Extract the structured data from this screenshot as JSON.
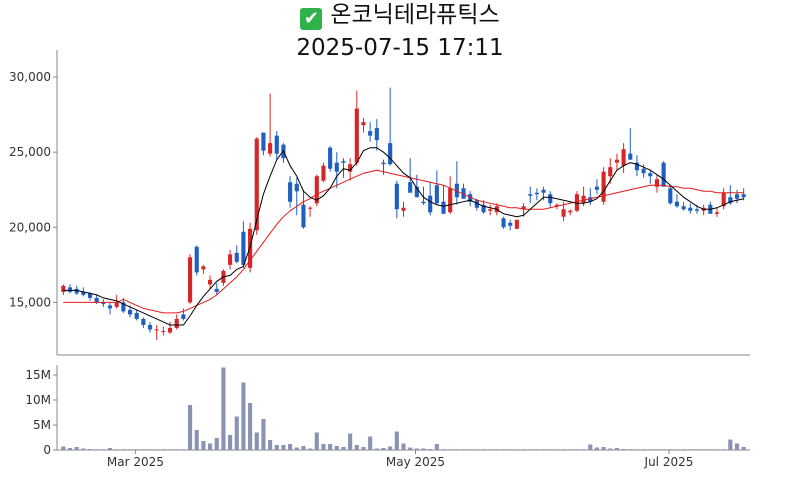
{
  "header": {
    "check_icon": "check-mark-button-icon",
    "stock_name": "온코닉테라퓨틱스",
    "timestamp": "2025-07-15 17:11"
  },
  "colors": {
    "up": "#d62728",
    "down": "#1f5fbf",
    "ma_short": "#000000",
    "ma_long": "#e41a1c",
    "volume": "#8a93b3",
    "axis": "#888888"
  },
  "chart_data": [
    {
      "type": "candlestick",
      "title": "온코닉테라퓨틱스",
      "subtitle": "2025-07-15 17:11",
      "xlabel": "",
      "ylabel": "",
      "x_ticks": [
        "Mar 2025",
        "May 2025",
        "Jul 2025"
      ],
      "y_ticks": [
        "15,000",
        "20,000",
        "25,000",
        "30,000"
      ],
      "ylim": [
        11500,
        31800
      ],
      "grid": false,
      "legend": "none",
      "x": [
        "2025-02-13",
        "2025-02-14",
        "2025-02-17",
        "2025-02-18",
        "2025-02-19",
        "2025-02-20",
        "2025-02-21",
        "2025-02-24",
        "2025-02-25",
        "2025-02-26",
        "2025-02-27",
        "2025-02-28",
        "2025-03-04",
        "2025-03-05",
        "2025-03-06",
        "2025-03-07",
        "2025-03-10",
        "2025-03-11",
        "2025-03-12",
        "2025-03-13",
        "2025-03-14",
        "2025-03-17",
        "2025-03-18",
        "2025-03-19",
        "2025-03-20",
        "2025-03-21",
        "2025-03-24",
        "2025-03-25",
        "2025-03-26",
        "2025-03-27",
        "2025-03-28",
        "2025-03-31",
        "2025-04-01",
        "2025-04-02",
        "2025-04-03",
        "2025-04-04",
        "2025-04-07",
        "2025-04-08",
        "2025-04-09",
        "2025-04-10",
        "2025-04-11",
        "2025-04-14",
        "2025-04-15",
        "2025-04-16",
        "2025-04-17",
        "2025-04-18",
        "2025-04-21",
        "2025-04-22",
        "2025-04-23",
        "2025-04-24",
        "2025-04-25",
        "2025-04-28",
        "2025-04-29",
        "2025-04-30",
        "2025-05-02",
        "2025-05-07",
        "2025-05-08",
        "2025-05-09",
        "2025-05-12",
        "2025-05-13",
        "2025-05-14",
        "2025-05-15",
        "2025-05-16",
        "2025-05-19",
        "2025-05-20",
        "2025-05-21",
        "2025-05-22",
        "2025-05-23",
        "2025-05-26",
        "2025-05-27",
        "2025-05-28",
        "2025-05-29",
        "2025-05-30",
        "2025-06-02",
        "2025-06-04",
        "2025-06-05",
        "2025-06-09",
        "2025-06-10",
        "2025-06-11",
        "2025-06-12",
        "2025-06-13",
        "2025-06-16",
        "2025-06-17",
        "2025-06-18",
        "2025-06-19",
        "2025-06-20",
        "2025-06-23",
        "2025-06-24",
        "2025-06-25",
        "2025-06-26",
        "2025-06-27",
        "2025-06-30",
        "2025-07-01",
        "2025-07-02",
        "2025-07-03",
        "2025-07-04",
        "2025-07-07",
        "2025-07-08",
        "2025-07-09",
        "2025-07-10",
        "2025-07-11",
        "2025-07-14",
        "2025-07-15"
      ],
      "ohlc": [
        [
          15700,
          16200,
          15500,
          16100
        ],
        [
          16000,
          16200,
          15600,
          15700
        ],
        [
          15900,
          16100,
          15500,
          15600
        ],
        [
          15700,
          16000,
          15400,
          15500
        ],
        [
          15600,
          15700,
          15100,
          15300
        ],
        [
          15300,
          15500,
          14900,
          15000
        ],
        [
          15000,
          15200,
          14700,
          14900
        ],
        [
          14800,
          15000,
          14200,
          14600
        ],
        [
          14700,
          15500,
          14600,
          15000
        ],
        [
          15000,
          15300,
          14300,
          14400
        ],
        [
          14500,
          14800,
          14000,
          14200
        ],
        [
          14300,
          14500,
          13800,
          13900
        ],
        [
          13900,
          14000,
          13300,
          13500
        ],
        [
          13500,
          13700,
          13000,
          13200
        ],
        [
          13200,
          13500,
          12500,
          13200
        ],
        [
          13100,
          13400,
          12800,
          13100
        ],
        [
          13000,
          13700,
          12900,
          13300
        ],
        [
          13300,
          14200,
          13200,
          13900
        ],
        [
          14200,
          14600,
          13800,
          13900
        ],
        [
          15000,
          18200,
          14900,
          18000
        ],
        [
          18700,
          18800,
          16800,
          17000
        ],
        [
          17200,
          17500,
          16900,
          17400
        ],
        [
          16200,
          16800,
          15900,
          16500
        ],
        [
          15900,
          16300,
          15500,
          15700
        ],
        [
          16300,
          17200,
          16100,
          17100
        ],
        [
          17500,
          18500,
          17200,
          18200
        ],
        [
          18300,
          18800,
          17600,
          17700
        ],
        [
          19700,
          20400,
          17300,
          17500
        ],
        [
          17300,
          20300,
          17000,
          19900
        ],
        [
          19800,
          26000,
          19500,
          25900
        ],
        [
          26300,
          26300,
          24800,
          25100
        ],
        [
          24900,
          28900,
          24700,
          25600
        ],
        [
          26100,
          26400,
          24500,
          24900
        ],
        [
          25500,
          25600,
          24300,
          24600
        ],
        [
          23000,
          23400,
          21300,
          21700
        ],
        [
          22900,
          23300,
          20800,
          22400
        ],
        [
          21500,
          22500,
          19900,
          20000
        ],
        [
          21300,
          21400,
          20700,
          21300
        ],
        [
          21600,
          23500,
          21400,
          23400
        ],
        [
          23100,
          24300,
          23000,
          24100
        ],
        [
          25300,
          25400,
          23700,
          23900
        ],
        [
          24300,
          25000,
          22600,
          23700
        ],
        [
          24400,
          24600,
          23300,
          24300
        ],
        [
          23700,
          24600,
          23100,
          24200
        ],
        [
          24300,
          29100,
          24100,
          27900
        ],
        [
          26800,
          27300,
          26300,
          27000
        ],
        [
          26400,
          27000,
          25700,
          26100
        ],
        [
          26600,
          27200,
          25100,
          25800
        ],
        [
          24300,
          24500,
          23500,
          24200
        ],
        [
          25600,
          29300,
          24100,
          24200
        ],
        [
          22900,
          23100,
          20600,
          21200
        ],
        [
          21100,
          21700,
          20700,
          21300
        ],
        [
          23000,
          24600,
          22400,
          22300
        ],
        [
          22700,
          23500,
          22000,
          22000
        ],
        [
          21700,
          22700,
          21500,
          21600
        ],
        [
          22100,
          23000,
          20800,
          21000
        ],
        [
          22800,
          23800,
          21500,
          21600
        ],
        [
          21700,
          22800,
          20900,
          20900
        ],
        [
          21000,
          23400,
          20900,
          22600
        ],
        [
          22900,
          24400,
          21500,
          22000
        ],
        [
          22600,
          22900,
          21900,
          21900
        ],
        [
          22200,
          22400,
          21400,
          21700
        ],
        [
          21800,
          21900,
          21100,
          21300
        ],
        [
          21500,
          21800,
          20900,
          21000
        ],
        [
          21100,
          21500,
          20800,
          21200
        ],
        [
          21000,
          21600,
          20800,
          21400
        ],
        [
          20600,
          20700,
          19900,
          20000
        ],
        [
          20300,
          20500,
          19800,
          20100
        ],
        [
          19900,
          20400,
          19900,
          20500
        ],
        [
          21200,
          21600,
          20700,
          21400
        ],
        [
          22200,
          22700,
          21600,
          22100
        ],
        [
          22300,
          22600,
          21800,
          22200
        ],
        [
          22500,
          22700,
          21800,
          22300
        ],
        [
          22200,
          22400,
          21300,
          21600
        ],
        [
          21400,
          21600,
          21200,
          21500
        ],
        [
          20700,
          21700,
          20400,
          21200
        ],
        [
          21000,
          21200,
          20800,
          21100
        ],
        [
          21100,
          22400,
          21000,
          22200
        ],
        [
          21600,
          22700,
          21400,
          22100
        ],
        [
          22000,
          22600,
          21500,
          21700
        ],
        [
          22700,
          23200,
          22200,
          22500
        ],
        [
          21700,
          24000,
          21500,
          23700
        ],
        [
          23400,
          24600,
          22900,
          24000
        ],
        [
          24300,
          24900,
          23800,
          24500
        ],
        [
          24100,
          25600,
          23600,
          25200
        ],
        [
          24900,
          26600,
          24500,
          24500
        ],
        [
          24300,
          24800,
          23400,
          23800
        ],
        [
          23900,
          24200,
          23300,
          23600
        ],
        [
          23600,
          23800,
          22900,
          23400
        ],
        [
          22700,
          23500,
          22300,
          23200
        ],
        [
          24300,
          24400,
          22800,
          22700
        ],
        [
          22600,
          22800,
          21500,
          21600
        ],
        [
          21700,
          22200,
          21300,
          21400
        ],
        [
          21400,
          21700,
          21100,
          21200
        ],
        [
          21300,
          21600,
          20900,
          21100
        ],
        [
          21200,
          21500,
          20900,
          21100
        ],
        [
          21100,
          21500,
          20800,
          21300
        ],
        [
          21500,
          21700,
          20900,
          20900
        ],
        [
          20900,
          21300,
          20700,
          21000
        ],
        [
          21400,
          22600,
          21200,
          22300
        ],
        [
          22000,
          22800,
          21500,
          21600
        ],
        [
          22200,
          22500,
          21600,
          21900
        ],
        [
          22200,
          22600,
          21800,
          22000
        ]
      ],
      "ma_short": {
        "name": "",
        "values": [
          15800,
          15800,
          15800,
          15700,
          15600,
          15500,
          15300,
          15200,
          15100,
          14900,
          14700,
          14500,
          14300,
          14100,
          13900,
          13700,
          13500,
          13500,
          13500,
          14100,
          14800,
          15400,
          15900,
          16400,
          16700,
          16800,
          17200,
          17400,
          18700,
          20500,
          22200,
          23400,
          24500,
          25100,
          24100,
          23400,
          22400,
          22000,
          21800,
          22100,
          22600,
          23400,
          23900,
          23800,
          24300,
          25100,
          25300,
          25300,
          25000,
          24600,
          24100,
          23600,
          23300,
          22600,
          22000,
          21700,
          21500,
          21400,
          21500,
          21600,
          21700,
          21800,
          21600,
          21400,
          21300,
          21200,
          20900,
          20800,
          20700,
          20800,
          21200,
          21600,
          22000,
          22000,
          21900,
          21800,
          21700,
          21600,
          21600,
          21700,
          21900,
          22400,
          23100,
          23800,
          24100,
          24300,
          24200,
          24000,
          23800,
          23500,
          23200,
          22800,
          22400,
          22000,
          21700,
          21400,
          21200,
          21200,
          21300,
          21500,
          21700,
          21800,
          21900
        ]
      },
      "ma_long": {
        "name": "",
        "values": [
          15000,
          15000,
          15000,
          15000,
          15000,
          15000,
          15000,
          15000,
          15000,
          15200,
          15000,
          14800,
          14600,
          14500,
          14400,
          14300,
          14300,
          14300,
          14400,
          14600,
          14800,
          15000,
          15200,
          15500,
          15900,
          16300,
          16700,
          17200,
          17800,
          18400,
          19000,
          19600,
          20200,
          20700,
          21100,
          21400,
          21700,
          21900,
          22200,
          22400,
          22600,
          22800,
          23000,
          23200,
          23400,
          23600,
          23700,
          23800,
          23700,
          23600,
          23500,
          23400,
          23300,
          23200,
          23100,
          23000,
          22900,
          22800,
          22600,
          22400,
          22200,
          22000,
          21800,
          21700,
          21600,
          21500,
          21400,
          21300,
          21300,
          21200,
          21200,
          21200,
          21200,
          21300,
          21400,
          21500,
          21600,
          21700,
          21800,
          21900,
          22000,
          22100,
          22200,
          22300,
          22400,
          22500,
          22600,
          22700,
          22800,
          22800,
          22800,
          22700,
          22700,
          22600,
          22600,
          22500,
          22400,
          22400,
          22300,
          22300,
          22300,
          22300,
          22300
        ]
      }
    },
    {
      "type": "bar",
      "title": "",
      "xlabel": "",
      "ylabel": "",
      "y_ticks": [
        "0",
        "5M",
        "10M",
        "15M"
      ],
      "ylim": [
        0,
        17000000
      ],
      "values": [
        700000,
        400000,
        600000,
        300000,
        200000,
        150000,
        150000,
        400000,
        150000,
        150000,
        150000,
        150000,
        150000,
        150000,
        150000,
        150000,
        150000,
        150000,
        150000,
        9000000,
        4000000,
        1800000,
        1300000,
        2400000,
        16500000,
        3000000,
        6700000,
        13500000,
        9400000,
        3500000,
        6200000,
        2000000,
        1000000,
        1000000,
        1200000,
        500000,
        800000,
        300000,
        3500000,
        1200000,
        1200000,
        800000,
        600000,
        3300000,
        1000000,
        600000,
        2700000,
        300000,
        400000,
        700000,
        3700000,
        1300000,
        500000,
        300000,
        300000,
        200000,
        1200000,
        150000,
        150000,
        150000,
        150000,
        150000,
        150000,
        150000,
        150000,
        150000,
        150000,
        150000,
        150000,
        150000,
        150000,
        150000,
        150000,
        150000,
        150000,
        150000,
        150000,
        150000,
        150000,
        1100000,
        500000,
        600000,
        300000,
        400000,
        200000,
        150000,
        150000,
        150000,
        150000,
        150000,
        150000,
        150000,
        150000,
        150000,
        150000,
        150000,
        150000,
        150000,
        150000,
        150000,
        2100000,
        1300000,
        600000
      ]
    }
  ]
}
